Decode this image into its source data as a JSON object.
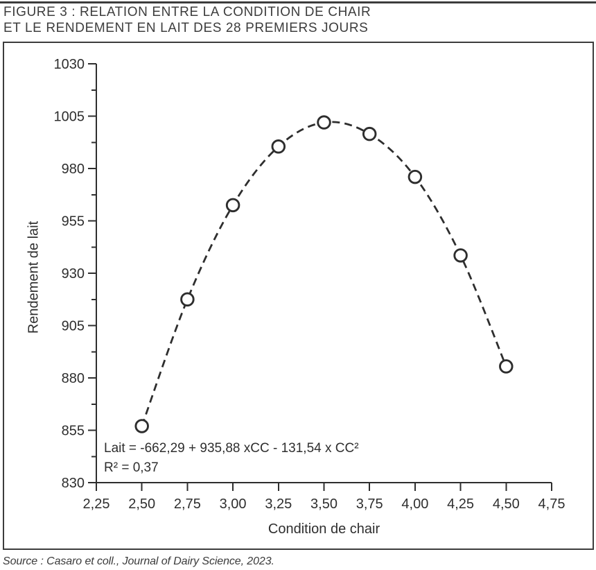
{
  "figure": {
    "title_line1": "FIGURE 3 : RELATION ENTRE LA CONDITION DE CHAIR",
    "title_line2": "ET LE RENDEMENT EN LAIT DES 28 PREMIERS JOURS",
    "source": "Source : Casaro et coll., Journal of Dairy Science, 2023."
  },
  "chart_data": {
    "type": "scatter",
    "title": "",
    "xlabel": "Condition de chair",
    "ylabel": "Rendement de lait",
    "xlim": [
      2.25,
      4.75
    ],
    "ylim": [
      830,
      1030
    ],
    "x": [
      2.5,
      2.75,
      3.0,
      3.25,
      3.5,
      3.75,
      4.0,
      4.25,
      4.5
    ],
    "y": [
      857,
      917.5,
      962.5,
      990.5,
      1002,
      996.5,
      976,
      938.5,
      885.5
    ],
    "x_tick_labels": [
      "2,25",
      "2,50",
      "2,75",
      "3,00",
      "3,25",
      "3,50",
      "3,75",
      "4,00",
      "4,25",
      "4,50",
      "4,75"
    ],
    "x_tick_values": [
      2.25,
      2.5,
      2.75,
      3.0,
      3.25,
      3.5,
      3.75,
      4.0,
      4.25,
      4.5,
      4.75
    ],
    "y_tick_labels": [
      "830",
      "855",
      "880",
      "905",
      "930",
      "955",
      "980",
      "1005",
      "1030"
    ],
    "y_tick_values": [
      830,
      855,
      880,
      905,
      930,
      955,
      980,
      1005,
      1030
    ],
    "y_minor_tick_values": [
      842.5,
      867.5,
      892.5,
      917.5,
      942.5,
      967.5,
      992.5,
      1017.5
    ],
    "annotation_equation": "Lait = -662,29 + 935,88 xCC - 131,54 x CC²",
    "annotation_r_squared": "R² = 0,37",
    "regression": {
      "intercept": -662.29,
      "b1": 935.88,
      "b2": -131.54,
      "r_squared": 0.37
    },
    "marker": "open-circle",
    "line_style": "dashed",
    "ink_color": "#2e2e2e",
    "marker_fill": "#ffffff",
    "grid": false,
    "legend": false
  }
}
